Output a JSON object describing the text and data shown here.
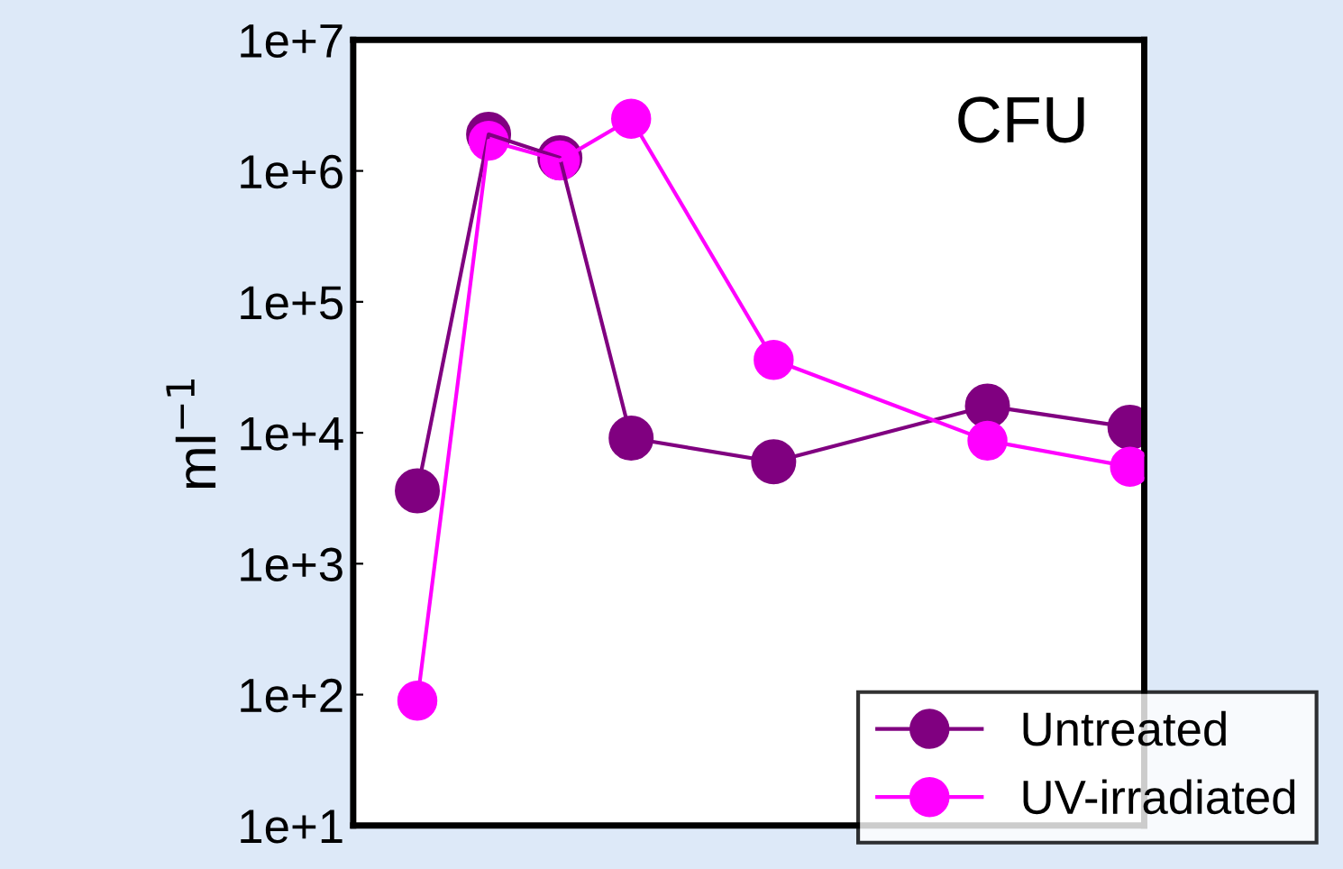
{
  "chart_data": {
    "type": "line",
    "ylabel": "ml$^{−1}$",
    "annotations": [
      "CFU"
    ],
    "categories": [
      null,
      null,
      null,
      null,
      null,
      null,
      null,
      null,
      null,
      null,
      null
    ],
    "log": "y",
    "ylim": [
      10,
      10000000
    ],
    "yticks": [
      {
        "value": 10,
        "label": "1e+1"
      },
      {
        "value": 100,
        "label": "1e+2"
      },
      {
        "value": 1000,
        "label": "1e+3"
      },
      {
        "value": 10000,
        "label": "1e+4"
      },
      {
        "value": 100000,
        "label": "1e+5"
      },
      {
        "value": 1000000,
        "label": "1e+6"
      },
      {
        "value": 10000000,
        "label": "1e+7"
      }
    ],
    "tick_labels": "y",
    "grid": false,
    "legend": "bottom right",
    "marker": "circle",
    "line_style": "solid",
    "series": [
      {
        "name": "Untreated",
        "color": "#800080",
        "values": [
          3600,
          1900000,
          1260000,
          9100,
          null,
          6000,
          null,
          null,
          16000,
          null,
          11000
        ]
      },
      {
        "name": "UV-irradiated",
        "color": "#ff00ff",
        "values": [
          90,
          1700000,
          1200000,
          2500000,
          null,
          36000,
          null,
          null,
          8700,
          null,
          5500
        ]
      }
    ]
  }
}
